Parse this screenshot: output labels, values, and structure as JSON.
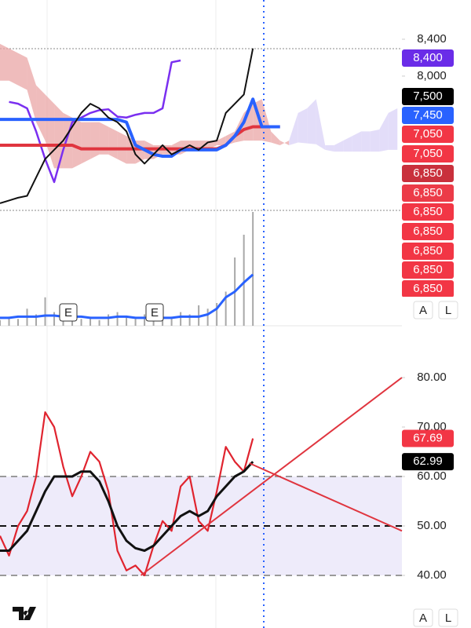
{
  "chart_data": [
    {
      "type": "line",
      "xlim": [
        0,
        44.5
      ],
      "ylim": [
        6500,
        8500
      ],
      "yticks": [
        {
          "value": 8400,
          "label": "8,400"
        },
        {
          "value": 8000,
          "label": "8,000"
        }
      ],
      "cloud": {
        "span_a": [
          7950,
          7950,
          7900,
          7850,
          7500,
          7300,
          7000,
          7000,
          7000,
          7050,
          7100,
          7150,
          7150,
          7100,
          7050,
          7050,
          7100,
          7100,
          7150,
          7150,
          7150,
          7200,
          7200,
          7200,
          7250,
          7250,
          7280,
          7300,
          7300,
          7300,
          7280,
          7250,
          7300,
          7600,
          7650,
          7750,
          7250,
          7250,
          7300,
          7350,
          7400,
          7400,
          7420,
          7600,
          7650
        ],
        "span_b": [
          8350,
          8300,
          8250,
          8200,
          7900,
          7800,
          7700,
          7600,
          7550,
          7500,
          7500,
          7500,
          7450,
          7400,
          7350,
          7300,
          7300,
          7250,
          7250,
          7250,
          7300,
          7300,
          7300,
          7300,
          7300,
          7350,
          7400,
          7600,
          7700,
          7750,
          7400,
          7300,
          7250,
          7280,
          7270,
          7260,
          7200,
          7180,
          7180,
          7180,
          7180,
          7180,
          7180,
          7200,
          7200
        ],
        "up_color": "#d9d2f7",
        "down_color": "#e9a6a6"
      },
      "series": [
        {
          "color": "#7a2ff0",
          "width": 2.5,
          "values": [
            null,
            7720,
            7700,
            7650,
            7400,
            7100,
            6850,
            7200,
            7500,
            7550,
            7600,
            7630,
            7640,
            7560,
            7550,
            7580,
            7600,
            7600,
            7650,
            8150,
            8170,
            null,
            null,
            null,
            null,
            null,
            null,
            null,
            null,
            null,
            null,
            null,
            null,
            null,
            null,
            null,
            null,
            null,
            null,
            null,
            null,
            null,
            null,
            null,
            null
          ]
        },
        {
          "color": "#e0353f",
          "width": 4,
          "values": [
            7250,
            7250,
            7250,
            7250,
            7250,
            7250,
            7250,
            7250,
            7250,
            7210,
            7210,
            7210,
            7210,
            7210,
            7210,
            7210,
            7210,
            7210,
            7210,
            7210,
            7210,
            7210,
            7210,
            7210,
            7210,
            7250,
            7350,
            7420,
            7450,
            7450,
            7450,
            7450,
            null,
            null,
            null,
            null,
            null,
            null,
            null,
            null,
            null,
            null,
            null,
            null,
            null
          ]
        },
        {
          "color": "#2962ff",
          "width": 4,
          "values": [
            7530,
            7530,
            7530,
            7530,
            7530,
            7530,
            7530,
            7530,
            7530,
            7530,
            7530,
            7530,
            7530,
            7530,
            7500,
            7250,
            7200,
            7150,
            7130,
            7130,
            7200,
            7200,
            7200,
            7200,
            7200,
            7250,
            7350,
            7500,
            7750,
            7450,
            7450,
            7450,
            null,
            null,
            null,
            null,
            null,
            null,
            null,
            null,
            null,
            null,
            null,
            null,
            null
          ]
        },
        {
          "color": "#111111",
          "width": 2,
          "values": [
            6620,
            6650,
            6680,
            6700,
            6900,
            7100,
            7200,
            7300,
            7450,
            7600,
            7700,
            7650,
            7550,
            7500,
            7400,
            7150,
            7050,
            7150,
            7250,
            7150,
            7200,
            7250,
            7200,
            7280,
            7300,
            7600,
            7700,
            7800,
            8300,
            null,
            null,
            null,
            null,
            null,
            null,
            null,
            null,
            null,
            null,
            null,
            null,
            null,
            null,
            null,
            null
          ]
        }
      ],
      "badges": [
        {
          "value": 8400,
          "label": "8,400",
          "color": "#6a2ce8"
        },
        {
          "value": 7500,
          "label": "7,500",
          "color": "#000000"
        },
        {
          "value": 7450,
          "label": "7,450",
          "color": "#2962ff"
        },
        {
          "value": 7050,
          "label": "7,050",
          "color": "#f23645"
        },
        {
          "value": 7050,
          "label": "7,050",
          "color": "#f23645"
        },
        {
          "value": 6850,
          "label": "6,850",
          "color": "#c9303c"
        },
        {
          "value": 6850,
          "label": "6,850",
          "color": "#ec3b48"
        },
        {
          "value": 6850,
          "label": "6,850",
          "color": "#f23645"
        },
        {
          "value": 6850,
          "label": "6,850",
          "color": "#f23645"
        },
        {
          "value": 6850,
          "label": "6,850",
          "color": "#f23645"
        },
        {
          "value": 6850,
          "label": "6,850",
          "color": "#f23645"
        },
        {
          "value": 6850,
          "label": "6,850",
          "color": "#f23645"
        }
      ]
    },
    {
      "type": "bar",
      "xlim": [
        0,
        44.5
      ],
      "ylim": [
        0,
        100
      ],
      "color": "#a8a8a8",
      "values": [
        5,
        8,
        6,
        15,
        10,
        25,
        12,
        8,
        10,
        6,
        8,
        5,
        10,
        12,
        8,
        6,
        10,
        8,
        6,
        8,
        12,
        10,
        18,
        15,
        20,
        30,
        60,
        80,
        100
      ],
      "series": [
        {
          "color": "#2962ff",
          "width": 3,
          "values": [
            7,
            7,
            8,
            8,
            8,
            9,
            9,
            8,
            8,
            8,
            7,
            7,
            7,
            8,
            8,
            7,
            7,
            7,
            7,
            7,
            8,
            8,
            8,
            10,
            15,
            25,
            30,
            38,
            45
          ]
        }
      ],
      "events": [
        "E",
        "E"
      ]
    },
    {
      "type": "line",
      "xlim": [
        0,
        44.5
      ],
      "ylim": [
        30,
        90
      ],
      "yticks": [
        {
          "value": 80,
          "label": "80.00"
        },
        {
          "value": 70,
          "label": "70.00"
        },
        {
          "value": 60,
          "label": "60.00"
        },
        {
          "value": 50,
          "label": "50.00"
        },
        {
          "value": 40,
          "label": "40.00"
        }
      ],
      "band": [
        40,
        60
      ],
      "band_color": "#eeebfa",
      "ref_lines": [
        {
          "value": 60,
          "color": "#9a9a9a"
        },
        {
          "value": 50,
          "color": "#111111"
        },
        {
          "value": 40,
          "color": "#9a9a9a"
        }
      ],
      "series": [
        {
          "color": "#e0242f",
          "width": 2.2,
          "values": [
            48,
            44,
            50,
            53,
            60,
            73,
            70,
            62,
            56,
            60,
            65,
            63,
            57,
            45,
            41,
            42,
            40,
            46,
            51,
            49,
            58,
            60,
            51,
            49,
            57,
            66,
            63,
            61,
            67.69
          ]
        },
        {
          "color": "#111111",
          "width": 3,
          "values": [
            45,
            45,
            47,
            49,
            53,
            57,
            60,
            60,
            60,
            61,
            61,
            59,
            55,
            50,
            47,
            45.5,
            45,
            46,
            48,
            50,
            52,
            53,
            52,
            53,
            56,
            58,
            60,
            61,
            62.99
          ]
        }
      ],
      "trendlines": [
        {
          "color": "#e0353f",
          "points": [
            [
              15.6,
              40
            ],
            [
              44.5,
              80
            ]
          ]
        },
        {
          "color": "#e0353f",
          "points": [
            [
              27.6,
              62.7
            ],
            [
              44.5,
              49
            ]
          ]
        }
      ],
      "badges": [
        {
          "value": 67.69,
          "label": "67.69",
          "color": "#f23645"
        },
        {
          "value": 62.99,
          "label": "62.99",
          "color": "#000000"
        }
      ]
    }
  ],
  "buttons": [
    "A",
    "L"
  ]
}
